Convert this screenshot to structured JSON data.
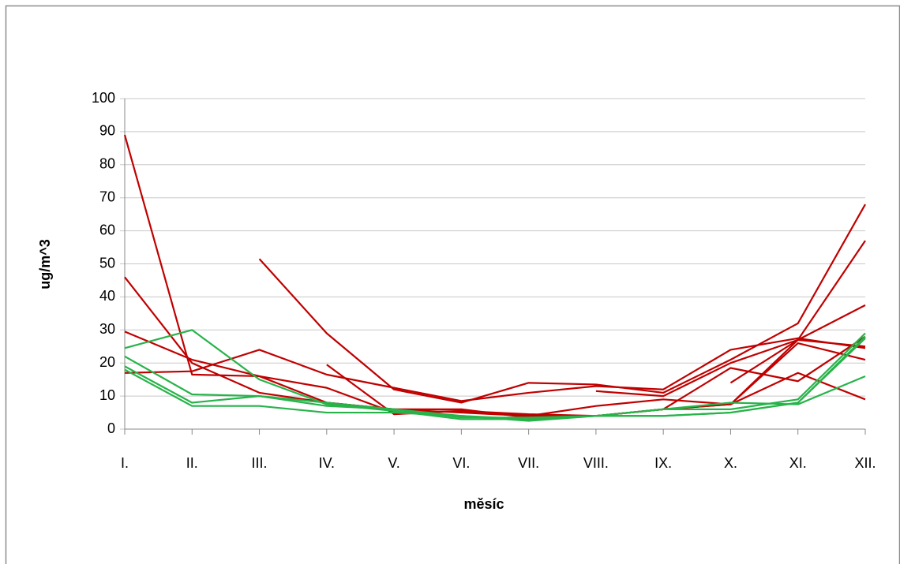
{
  "chart_data": {
    "type": "line",
    "x_label": "měsíc",
    "y_label": "ug/m^3",
    "categories": [
      "I.",
      "II.",
      "III.",
      "IV.",
      "V.",
      "VI.",
      "VII.",
      "VIII.",
      "IX.",
      "X.",
      "XI.",
      "XII."
    ],
    "ylim": [
      0,
      100
    ],
    "yticks": [
      0,
      10,
      20,
      30,
      40,
      50,
      60,
      70,
      80,
      90,
      100
    ],
    "grid": true,
    "series": [
      {
        "color": "#c00000",
        "values": [
          89,
          16.5,
          16,
          12.5,
          5,
          5.5,
          4,
          7,
          9,
          7.5,
          17,
          9
        ]
      },
      {
        "color": "#c00000",
        "values": [
          46,
          20,
          11,
          8,
          6,
          5,
          4,
          4,
          6,
          7.5,
          26,
          21
        ]
      },
      {
        "color": "#c00000",
        "values": [
          29.5,
          21,
          16,
          8,
          6,
          6,
          3.5,
          4,
          6,
          7.5,
          27,
          57
        ]
      },
      {
        "color": "#c00000",
        "values": [
          17,
          17.5,
          24,
          16.5,
          12.5,
          8.5,
          11,
          13,
          12,
          24,
          27.5,
          24.5
        ]
      },
      {
        "color": "#c00000",
        "values": [
          null,
          null,
          51.5,
          29,
          12,
          8,
          14,
          13.5,
          11,
          21,
          32,
          68
        ]
      },
      {
        "color": "#c00000",
        "values": [
          null,
          null,
          null,
          19.5,
          4.5,
          5.5,
          4.5,
          4,
          6,
          18.5,
          14.5,
          28
        ]
      },
      {
        "color": "#c00000",
        "values": [
          null,
          null,
          null,
          null,
          null,
          null,
          null,
          11.5,
          10,
          20,
          27,
          25
        ]
      },
      {
        "color": "#c00000",
        "values": [
          null,
          null,
          null,
          null,
          null,
          null,
          null,
          null,
          null,
          14,
          27,
          37.5
        ]
      },
      {
        "color": "#27b34a",
        "values": [
          24.5,
          30,
          15,
          7.5,
          5.5,
          3,
          3,
          4,
          6,
          8,
          7.5,
          16
        ]
      },
      {
        "color": "#27b34a",
        "values": [
          22,
          10.5,
          10,
          8,
          6,
          3.5,
          3.5,
          4,
          6,
          6,
          9,
          29
        ]
      },
      {
        "color": "#27b34a",
        "values": [
          19,
          8,
          10,
          7,
          6,
          4,
          2.5,
          4,
          4,
          5,
          8,
          28
        ]
      },
      {
        "color": "#27b34a",
        "values": [
          18,
          7,
          7,
          5,
          5,
          4,
          3,
          4,
          4,
          5,
          8,
          27.5
        ]
      }
    ]
  }
}
